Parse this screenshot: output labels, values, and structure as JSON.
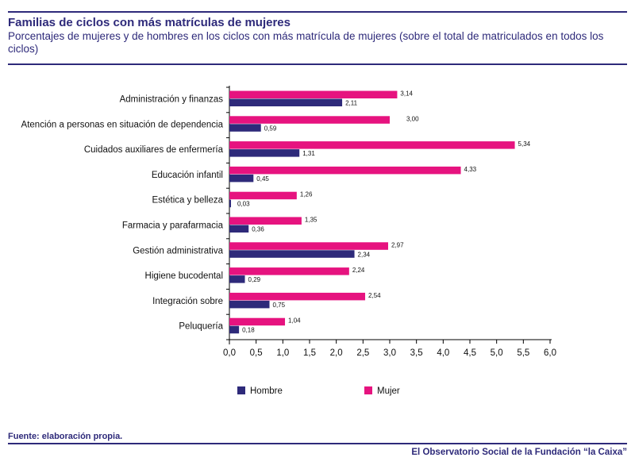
{
  "header": {
    "title": "Familias de ciclos con más matrículas de mujeres",
    "subtitle": "Porcentajes de mujeres y de hombres en los ciclos con más matrícula de mujeres (sobre el total de matriculados en todos los ciclos)"
  },
  "footer": {
    "source": "Fuente:  elaboración propia.",
    "publisher": "El Observatorio Social de la Fundación “la Caixa”"
  },
  "colors": {
    "hombre": "#2e2a7a",
    "mujer": "#e6137f",
    "text": "#2e2a7a"
  },
  "chart_data": {
    "type": "bar",
    "orientation": "horizontal",
    "categories": [
      "Administración y finanzas",
      "Atención a personas en situación de dependencia",
      "Cuidados auxiliares de enfermería",
      "Educación infantil",
      "Estética y belleza",
      "Farmacia y parafarmacia",
      "Gestión administrativa",
      "Higiene bucodental",
      "Integración sobre",
      "Peluquería"
    ],
    "series": [
      {
        "name": "Mujer",
        "values": [
          3.14,
          3.0,
          5.34,
          4.33,
          1.26,
          1.35,
          2.97,
          2.24,
          2.54,
          1.04
        ],
        "labels": [
          "3,14",
          "3,00",
          "5,34",
          "4,33",
          "1,26",
          "1,35",
          "2,97",
          "2,24",
          "2,54",
          "1,04"
        ]
      },
      {
        "name": "Hombre",
        "values": [
          2.11,
          0.59,
          1.31,
          0.45,
          0.03,
          0.36,
          2.34,
          0.29,
          0.75,
          0.18
        ],
        "labels": [
          "2,11",
          "0,59",
          "1,31",
          "0,45",
          "0,03",
          "0,36",
          "2,34",
          "0,29",
          "0,75",
          "0,18"
        ]
      }
    ],
    "xlim": [
      0,
      6
    ],
    "xticks": [
      0,
      0.5,
      1,
      1.5,
      2,
      2.5,
      3,
      3.5,
      4,
      4.5,
      5,
      5.5,
      6
    ],
    "xtick_labels": [
      "0,0",
      "0,5",
      "1,0",
      "1,5",
      "2,0",
      "2,5",
      "3,0",
      "3,5",
      "4,0",
      "4,5",
      "5,0",
      "5,5",
      "6,0"
    ],
    "legend": [
      {
        "name": "Hombre"
      },
      {
        "name": "Mujer"
      }
    ],
    "legend_position": "bottom",
    "grid": false
  }
}
